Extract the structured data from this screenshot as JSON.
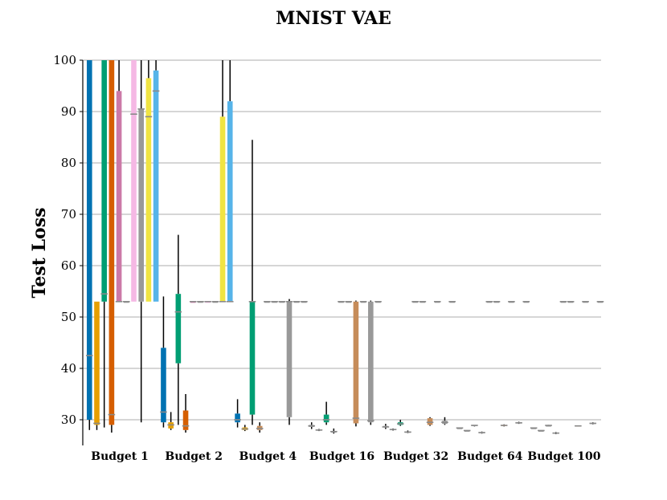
{
  "chart_data": {
    "type": "box",
    "title": "MNIST VAE",
    "xlabel": "",
    "ylabel": "Test Loss",
    "ylim": [
      25,
      100
    ],
    "yticks": [
      30,
      40,
      50,
      60,
      70,
      80,
      90,
      100
    ],
    "grid": true,
    "categories": [
      "Budget 1",
      "Budget 2",
      "Budget 4",
      "Budget 16",
      "Budget 32",
      "Budget 64",
      "Budget 100"
    ],
    "palette": [
      "#0072b2",
      "#e69f00",
      "#009e73",
      "#d55e00",
      "#cc79a7",
      "#f5b8e4",
      "#999999",
      "#f0e442",
      "#56b4e9",
      "#c68c5a"
    ],
    "groups": [
      {
        "category": "Budget 1",
        "boxes": [
          {
            "color": "#0072b2",
            "whislo": 28,
            "q1": 30,
            "med": 42.5,
            "q3": 100,
            "whishi": 100
          },
          {
            "color": "#e69f00",
            "whislo": 28,
            "q1": 29,
            "med": 29.3,
            "q3": 53,
            "whishi": 53
          },
          {
            "color": "#009e73",
            "whislo": 28.5,
            "q1": 53,
            "med": 54.5,
            "q3": 100,
            "whishi": 100
          },
          {
            "color": "#d55e00",
            "whislo": 27.5,
            "q1": 29,
            "med": 31,
            "q3": 100,
            "whishi": 100
          },
          {
            "color": "#cc79a7",
            "whislo": 53,
            "q1": 53,
            "med": 53,
            "q3": 94,
            "whishi": 100
          },
          {
            "color": "#999999",
            "whislo": 53,
            "q1": 53,
            "med": 53,
            "q3": 53,
            "whishi": 53
          },
          {
            "color": "#f5b8e4",
            "whislo": 53,
            "q1": 53,
            "med": 89.5,
            "q3": 100,
            "whishi": 100
          },
          {
            "color": "#999999",
            "whislo": 29.5,
            "q1": 53,
            "med": 90.5,
            "q3": 90.5,
            "whishi": 100
          },
          {
            "color": "#f0e442",
            "whislo": 53,
            "q1": 53,
            "med": 89,
            "q3": 96.5,
            "whishi": 100
          },
          {
            "color": "#56b4e9",
            "whislo": 53,
            "q1": 53,
            "med": 94,
            "q3": 98,
            "whishi": 100
          }
        ]
      },
      {
        "category": "Budget 2",
        "boxes": [
          {
            "color": "#0072b2",
            "whislo": 28.5,
            "q1": 29.5,
            "med": 31.5,
            "q3": 44,
            "whishi": 54
          },
          {
            "color": "#e69f00",
            "whislo": 28,
            "q1": 28.3,
            "med": 29,
            "q3": 29.5,
            "whishi": 31.5
          },
          {
            "color": "#009e73",
            "whislo": 29,
            "q1": 41,
            "med": 51,
            "q3": 54.5,
            "whishi": 66
          },
          {
            "color": "#d55e00",
            "whislo": 27.5,
            "q1": 28,
            "med": 28.8,
            "q3": 31.8,
            "whishi": 35
          },
          {
            "color": "#cc79a7",
            "whislo": 53,
            "q1": 53,
            "med": 53,
            "q3": 53,
            "whishi": 53
          },
          {
            "color": "#999999",
            "whislo": 53,
            "q1": 53,
            "med": 53,
            "q3": 53,
            "whishi": 53
          },
          {
            "color": "#f5b8e4",
            "whislo": 53,
            "q1": 53,
            "med": 53,
            "q3": 53,
            "whishi": 53
          },
          {
            "color": "#999999",
            "whislo": 53,
            "q1": 53,
            "med": 53,
            "q3": 53,
            "whishi": 53
          },
          {
            "color": "#f0e442",
            "whislo": 53,
            "q1": 53,
            "med": 53,
            "q3": 89,
            "whishi": 100
          },
          {
            "color": "#56b4e9",
            "whislo": 53,
            "q1": 53,
            "med": 53,
            "q3": 92,
            "whishi": 100
          }
        ]
      },
      {
        "category": "Budget 4",
        "boxes": [
          {
            "color": "#0072b2",
            "whislo": 28.5,
            "q1": 29.5,
            "med": 30,
            "q3": 31.2,
            "whishi": 34
          },
          {
            "color": "#e69f00",
            "whislo": 27.8,
            "q1": 28,
            "med": 28.2,
            "q3": 28.5,
            "whishi": 29
          },
          {
            "color": "#009e73",
            "whislo": 29,
            "q1": 31,
            "med": 53,
            "q3": 53,
            "whishi": 84.5
          },
          {
            "color": "#c68c5a",
            "whislo": 27.5,
            "q1": 28,
            "med": 28.3,
            "q3": 28.8,
            "whishi": 29.5
          },
          {
            "color": "#999999",
            "whislo": 53,
            "q1": 53,
            "med": 53,
            "q3": 53,
            "whishi": 53
          },
          {
            "color": "#999999",
            "whislo": 53,
            "q1": 53,
            "med": 53,
            "q3": 53,
            "whishi": 53
          },
          {
            "color": "#999999",
            "whislo": 53,
            "q1": 53,
            "med": 53,
            "q3": 53,
            "whishi": 53
          },
          {
            "color": "#999999",
            "whislo": 29,
            "q1": 30.5,
            "med": 53,
            "q3": 53,
            "whishi": 53.5
          },
          {
            "color": "#999999",
            "whislo": 53,
            "q1": 53,
            "med": 53,
            "q3": 53,
            "whishi": 53
          },
          {
            "color": "#999999",
            "whislo": 53,
            "q1": 53,
            "med": 53,
            "q3": 53,
            "whishi": 53
          }
        ]
      },
      {
        "category": "Budget 16",
        "boxes": [
          {
            "color": "#999999",
            "whislo": 28.2,
            "q1": 28.6,
            "med": 28.8,
            "q3": 29,
            "whishi": 29.5
          },
          {
            "color": "#999999",
            "whislo": 27.8,
            "q1": 27.9,
            "med": 28,
            "q3": 28.1,
            "whishi": 28.2
          },
          {
            "color": "#009e73",
            "whislo": 29,
            "q1": 29.5,
            "med": 30,
            "q3": 31,
            "whishi": 33.5
          },
          {
            "color": "#999999",
            "whislo": 27.3,
            "q1": 27.5,
            "med": 27.7,
            "q3": 27.8,
            "whishi": 28.3
          },
          {
            "color": "#999999",
            "whislo": 53,
            "q1": 53,
            "med": 53,
            "q3": 53,
            "whishi": 53
          },
          {
            "color": "#999999",
            "whislo": 53,
            "q1": 53,
            "med": 53,
            "q3": 53,
            "whishi": 53
          },
          {
            "color": "#c68c5a",
            "whislo": 28.7,
            "q1": 29.3,
            "med": 30.3,
            "q3": 53,
            "whishi": 53.2
          },
          {
            "color": "#999999",
            "whislo": 53,
            "q1": 53,
            "med": 53,
            "q3": 53,
            "whishi": 53
          },
          {
            "color": "#999999",
            "whislo": 29,
            "q1": 29.5,
            "med": 29.8,
            "q3": 53,
            "whishi": 53.2
          },
          {
            "color": "#999999",
            "whislo": 53,
            "q1": 53,
            "med": 53,
            "q3": 53,
            "whishi": 53
          }
        ]
      },
      {
        "category": "Budget 32",
        "boxes": [
          {
            "color": "#999999",
            "whislo": 28.2,
            "q1": 28.5,
            "med": 28.6,
            "q3": 28.8,
            "whishi": 29.2
          },
          {
            "color": "#999999",
            "whislo": 27.9,
            "q1": 28,
            "med": 28.1,
            "q3": 28.2,
            "whishi": 28.3
          },
          {
            "color": "#009e73",
            "whislo": 28.8,
            "q1": 29,
            "med": 29.2,
            "q3": 29.5,
            "whishi": 30
          },
          {
            "color": "#999999",
            "whislo": 27.4,
            "q1": 27.5,
            "med": 27.6,
            "q3": 27.7,
            "whishi": 27.9
          },
          {
            "color": "#999999",
            "whislo": 53,
            "q1": 53,
            "med": 53,
            "q3": 53,
            "whishi": 53
          },
          {
            "color": "#999999",
            "whislo": 53,
            "q1": 53,
            "med": 53,
            "q3": 53,
            "whishi": 53
          },
          {
            "color": "#c68c5a",
            "whislo": 28.8,
            "q1": 29,
            "med": 29.5,
            "q3": 30.3,
            "whishi": 30.5
          },
          {
            "color": "#999999",
            "whislo": 53,
            "q1": 53,
            "med": 53,
            "q3": 53,
            "whishi": 53
          },
          {
            "color": "#999999",
            "whislo": 29,
            "q1": 29.2,
            "med": 29.5,
            "q3": 29.8,
            "whishi": 30.5
          },
          {
            "color": "#999999",
            "whislo": 53,
            "q1": 53,
            "med": 53,
            "q3": 53,
            "whishi": 53
          }
        ]
      },
      {
        "category": "Budget 64",
        "boxes": [
          {
            "color": "#999999",
            "whislo": 28.4,
            "q1": 28.4,
            "med": 28.4,
            "q3": 28.4,
            "whishi": 28.4
          },
          {
            "color": "#999999",
            "whislo": 27.9,
            "q1": 27.9,
            "med": 27.9,
            "q3": 27.9,
            "whishi": 27.9
          },
          {
            "color": "#999999",
            "whislo": 28.7,
            "q1": 28.8,
            "med": 28.9,
            "q3": 29,
            "whishi": 29
          },
          {
            "color": "#999999",
            "whislo": 27.3,
            "q1": 27.4,
            "med": 27.5,
            "q3": 27.6,
            "whishi": 27.7
          },
          {
            "color": "#999999",
            "whislo": 53,
            "q1": 53,
            "med": 53,
            "q3": 53,
            "whishi": 53
          },
          {
            "color": "#999999",
            "whislo": 53,
            "q1": 53,
            "med": 53,
            "q3": 53,
            "whishi": 53
          },
          {
            "color": "#c68c5a",
            "whislo": 28.7,
            "q1": 28.8,
            "med": 28.9,
            "q3": 29,
            "whishi": 29.1
          },
          {
            "color": "#999999",
            "whislo": 53,
            "q1": 53,
            "med": 53,
            "q3": 53,
            "whishi": 53
          },
          {
            "color": "#999999",
            "whislo": 29.2,
            "q1": 29.3,
            "med": 29.4,
            "q3": 29.5,
            "whishi": 29.6
          },
          {
            "color": "#999999",
            "whislo": 53,
            "q1": 53,
            "med": 53,
            "q3": 53,
            "whishi": 53
          }
        ]
      },
      {
        "category": "Budget 100",
        "boxes": [
          {
            "color": "#999999",
            "whislo": 28.4,
            "q1": 28.4,
            "med": 28.4,
            "q3": 28.4,
            "whishi": 28.4
          },
          {
            "color": "#999999",
            "whislo": 27.9,
            "q1": 27.9,
            "med": 27.9,
            "q3": 27.9,
            "whishi": 27.9
          },
          {
            "color": "#999999",
            "whislo": 28.8,
            "q1": 28.8,
            "med": 28.9,
            "q3": 28.9,
            "whishi": 29
          },
          {
            "color": "#999999",
            "whislo": 27.2,
            "q1": 27.3,
            "med": 27.4,
            "q3": 27.5,
            "whishi": 27.6
          },
          {
            "color": "#999999",
            "whislo": 53,
            "q1": 53,
            "med": 53,
            "q3": 53,
            "whishi": 53
          },
          {
            "color": "#999999",
            "whislo": 53,
            "q1": 53,
            "med": 53,
            "q3": 53,
            "whishi": 53
          },
          {
            "color": "#c68c5a",
            "whislo": 28.7,
            "q1": 28.7,
            "med": 28.8,
            "q3": 28.9,
            "whishi": 28.9
          },
          {
            "color": "#999999",
            "whislo": 53,
            "q1": 53,
            "med": 53,
            "q3": 53,
            "whishi": 53
          },
          {
            "color": "#999999",
            "whislo": 29.1,
            "q1": 29.2,
            "med": 29.3,
            "q3": 29.4,
            "whishi": 29.5
          },
          {
            "color": "#999999",
            "whislo": 53,
            "q1": 53,
            "med": 53,
            "q3": 53,
            "whishi": 53
          }
        ]
      }
    ]
  }
}
